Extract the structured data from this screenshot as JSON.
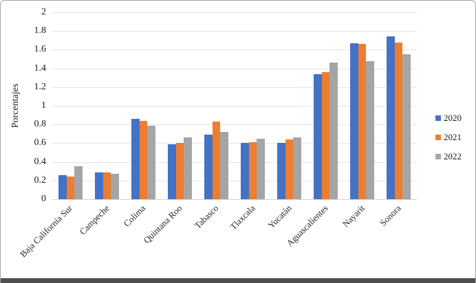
{
  "frame": {
    "background": "#ffffff",
    "border_color": "#a3a3a3",
    "bottom_bar_color": "#4f4f4f",
    "gridline_color": "#e3e3e3"
  },
  "chart_data": {
    "type": "bar",
    "title": "",
    "xlabel": "",
    "ylabel": "Porcentajes",
    "ylim": [
      0,
      2
    ],
    "ytick_step": 0.2,
    "grid": true,
    "legend_position": "right",
    "categories": [
      "Baja California Sur",
      "Campeche",
      "Colima",
      "Quintana Roo",
      "Tabasco",
      "Tlaxcala",
      "Yucatán",
      "Aguascalientes",
      "Nayarit",
      "Sonora"
    ],
    "series": [
      {
        "name": "2020",
        "color": "#4472C4",
        "values": [
          0.26,
          0.29,
          0.86,
          0.59,
          0.69,
          0.6,
          0.6,
          1.34,
          1.67,
          1.74
        ]
      },
      {
        "name": "2021",
        "color": "#ED7D31",
        "values": [
          0.24,
          0.29,
          0.84,
          0.6,
          0.83,
          0.61,
          0.64,
          1.36,
          1.66,
          1.68
        ]
      },
      {
        "name": "2022",
        "color": "#A5A5A5",
        "values": [
          0.35,
          0.27,
          0.79,
          0.66,
          0.72,
          0.65,
          0.66,
          1.46,
          1.48,
          1.55
        ]
      }
    ]
  }
}
